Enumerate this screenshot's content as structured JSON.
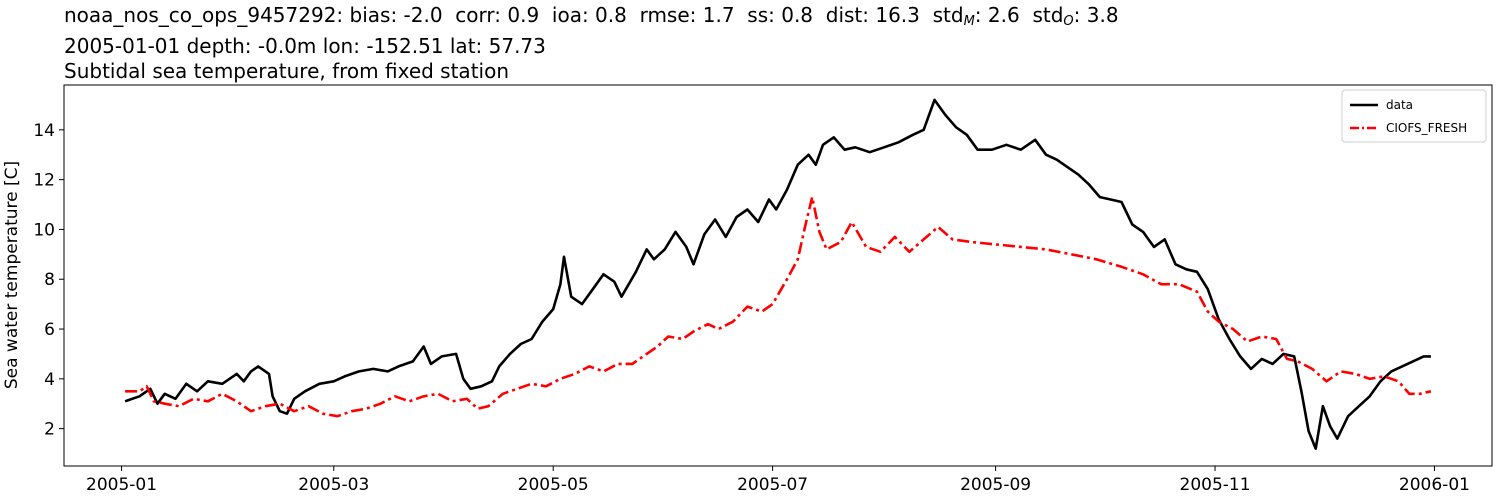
{
  "title": {
    "station": "noaa_nos_co_ops_9457292",
    "stats": [
      {
        "label": "bias",
        "value": "-2.0"
      },
      {
        "label": "corr",
        "value": "0.9"
      },
      {
        "label": "ioa",
        "value": "0.8"
      },
      {
        "label": "rmse",
        "value": "1.7"
      },
      {
        "label": "ss",
        "value": "0.8"
      },
      {
        "label": "dist",
        "value": "16.3"
      }
    ],
    "std_m_label": "std",
    "std_m_sub": "M",
    "std_m_value": "2.6",
    "std_o_label": "std",
    "std_o_sub": "O",
    "std_o_value": "3.8",
    "line2": "2005-01-01 depth: -0.0m lon: -152.51 lat: 57.73",
    "line3": "Subtidal sea temperature, from fixed station"
  },
  "chart_data": {
    "type": "line",
    "xlabel": "",
    "ylabel": "Sea water temperature [C]",
    "xlim": [
      "2004-12-16",
      "2006-01-17"
    ],
    "ylim": [
      0.5,
      15.8
    ],
    "x_ticks": [
      "2005-01",
      "2005-03",
      "2005-05",
      "2005-07",
      "2005-09",
      "2005-11",
      "2006-01"
    ],
    "y_ticks": [
      2,
      4,
      6,
      8,
      10,
      12,
      14
    ],
    "grid": false,
    "legend_position": "top-right",
    "series": [
      {
        "name": "data",
        "color": "#000000",
        "style": "solid",
        "points": [
          [
            "2005-01-02",
            3.1
          ],
          [
            "2005-01-06",
            3.3
          ],
          [
            "2005-01-09",
            3.6
          ],
          [
            "2005-01-11",
            3.0
          ],
          [
            "2005-01-13",
            3.4
          ],
          [
            "2005-01-16",
            3.2
          ],
          [
            "2005-01-19",
            3.8
          ],
          [
            "2005-01-22",
            3.5
          ],
          [
            "2005-01-25",
            3.9
          ],
          [
            "2005-01-29",
            3.8
          ],
          [
            "2005-02-02",
            4.2
          ],
          [
            "2005-02-04",
            3.9
          ],
          [
            "2005-02-06",
            4.3
          ],
          [
            "2005-02-08",
            4.5
          ],
          [
            "2005-02-11",
            4.2
          ],
          [
            "2005-02-12",
            3.3
          ],
          [
            "2005-02-14",
            2.7
          ],
          [
            "2005-02-16",
            2.6
          ],
          [
            "2005-02-18",
            3.2
          ],
          [
            "2005-02-21",
            3.5
          ],
          [
            "2005-02-25",
            3.8
          ],
          [
            "2005-03-01",
            3.9
          ],
          [
            "2005-03-04",
            4.1
          ],
          [
            "2005-03-08",
            4.3
          ],
          [
            "2005-03-12",
            4.4
          ],
          [
            "2005-03-16",
            4.3
          ],
          [
            "2005-03-19",
            4.5
          ],
          [
            "2005-03-23",
            4.7
          ],
          [
            "2005-03-26",
            5.3
          ],
          [
            "2005-03-28",
            4.6
          ],
          [
            "2005-03-31",
            4.9
          ],
          [
            "2005-04-04",
            5.0
          ],
          [
            "2005-04-06",
            4.0
          ],
          [
            "2005-04-08",
            3.6
          ],
          [
            "2005-04-11",
            3.7
          ],
          [
            "2005-04-14",
            3.9
          ],
          [
            "2005-04-16",
            4.5
          ],
          [
            "2005-04-19",
            5.0
          ],
          [
            "2005-04-22",
            5.4
          ],
          [
            "2005-04-25",
            5.6
          ],
          [
            "2005-04-28",
            6.3
          ],
          [
            "2005-05-01",
            6.8
          ],
          [
            "2005-05-03",
            7.8
          ],
          [
            "2005-05-04",
            8.9
          ],
          [
            "2005-05-06",
            7.3
          ],
          [
            "2005-05-09",
            7.0
          ],
          [
            "2005-05-12",
            7.6
          ],
          [
            "2005-05-15",
            8.2
          ],
          [
            "2005-05-18",
            7.9
          ],
          [
            "2005-05-20",
            7.3
          ],
          [
            "2005-05-24",
            8.3
          ],
          [
            "2005-05-27",
            9.2
          ],
          [
            "2005-05-29",
            8.8
          ],
          [
            "2005-06-01",
            9.2
          ],
          [
            "2005-06-04",
            9.9
          ],
          [
            "2005-06-07",
            9.3
          ],
          [
            "2005-06-09",
            8.6
          ],
          [
            "2005-06-12",
            9.8
          ],
          [
            "2005-06-15",
            10.4
          ],
          [
            "2005-06-18",
            9.7
          ],
          [
            "2005-06-21",
            10.5
          ],
          [
            "2005-06-24",
            10.8
          ],
          [
            "2005-06-27",
            10.3
          ],
          [
            "2005-06-30",
            11.2
          ],
          [
            "2005-07-02",
            10.8
          ],
          [
            "2005-07-05",
            11.6
          ],
          [
            "2005-07-08",
            12.6
          ],
          [
            "2005-07-11",
            13.0
          ],
          [
            "2005-07-13",
            12.6
          ],
          [
            "2005-07-15",
            13.4
          ],
          [
            "2005-07-18",
            13.7
          ],
          [
            "2005-07-21",
            13.2
          ],
          [
            "2005-07-24",
            13.3
          ],
          [
            "2005-07-28",
            13.1
          ],
          [
            "2005-08-01",
            13.3
          ],
          [
            "2005-08-05",
            13.5
          ],
          [
            "2005-08-09",
            13.8
          ],
          [
            "2005-08-12",
            14.0
          ],
          [
            "2005-08-15",
            15.2
          ],
          [
            "2005-08-18",
            14.6
          ],
          [
            "2005-08-21",
            14.1
          ],
          [
            "2005-08-24",
            13.8
          ],
          [
            "2005-08-27",
            13.2
          ],
          [
            "2005-08-31",
            13.2
          ],
          [
            "2005-09-04",
            13.4
          ],
          [
            "2005-09-08",
            13.2
          ],
          [
            "2005-09-12",
            13.6
          ],
          [
            "2005-09-15",
            13.0
          ],
          [
            "2005-09-18",
            12.8
          ],
          [
            "2005-09-21",
            12.5
          ],
          [
            "2005-09-24",
            12.2
          ],
          [
            "2005-09-27",
            11.8
          ],
          [
            "2005-09-30",
            11.3
          ],
          [
            "2005-10-03",
            11.2
          ],
          [
            "2005-10-06",
            11.1
          ],
          [
            "2005-10-09",
            10.2
          ],
          [
            "2005-10-12",
            9.9
          ],
          [
            "2005-10-15",
            9.3
          ],
          [
            "2005-10-18",
            9.6
          ],
          [
            "2005-10-21",
            8.6
          ],
          [
            "2005-10-24",
            8.4
          ],
          [
            "2005-10-27",
            8.3
          ],
          [
            "2005-10-30",
            7.6
          ],
          [
            "2005-11-02",
            6.4
          ],
          [
            "2005-11-05",
            5.6
          ],
          [
            "2005-11-08",
            4.9
          ],
          [
            "2005-11-11",
            4.4
          ],
          [
            "2005-11-14",
            4.8
          ],
          [
            "2005-11-17",
            4.6
          ],
          [
            "2005-11-20",
            5.0
          ],
          [
            "2005-11-23",
            4.9
          ],
          [
            "2005-11-25",
            3.5
          ],
          [
            "2005-11-27",
            1.9
          ],
          [
            "2005-11-29",
            1.2
          ],
          [
            "2005-12-01",
            2.9
          ],
          [
            "2005-12-03",
            2.1
          ],
          [
            "2005-12-05",
            1.6
          ],
          [
            "2005-12-08",
            2.5
          ],
          [
            "2005-12-11",
            2.9
          ],
          [
            "2005-12-14",
            3.3
          ],
          [
            "2005-12-17",
            3.9
          ],
          [
            "2005-12-20",
            4.3
          ],
          [
            "2005-12-23",
            4.5
          ],
          [
            "2005-12-26",
            4.7
          ],
          [
            "2005-12-29",
            4.9
          ],
          [
            "2005-12-31",
            4.9
          ]
        ]
      },
      {
        "name": "CIOFS_FRESH",
        "color": "#ff0000",
        "style": "dashdot",
        "points": [
          [
            "2005-01-02",
            3.5
          ],
          [
            "2005-01-06",
            3.5
          ],
          [
            "2005-01-08",
            3.7
          ],
          [
            "2005-01-10",
            3.1
          ],
          [
            "2005-01-13",
            3.0
          ],
          [
            "2005-01-17",
            2.9
          ],
          [
            "2005-01-21",
            3.2
          ],
          [
            "2005-01-25",
            3.1
          ],
          [
            "2005-01-29",
            3.4
          ],
          [
            "2005-02-02",
            3.1
          ],
          [
            "2005-02-06",
            2.7
          ],
          [
            "2005-02-10",
            2.9
          ],
          [
            "2005-02-14",
            3.0
          ],
          [
            "2005-02-18",
            2.7
          ],
          [
            "2005-02-22",
            2.9
          ],
          [
            "2005-02-26",
            2.6
          ],
          [
            "2005-03-02",
            2.5
          ],
          [
            "2005-03-06",
            2.7
          ],
          [
            "2005-03-10",
            2.8
          ],
          [
            "2005-03-14",
            3.0
          ],
          [
            "2005-03-18",
            3.3
          ],
          [
            "2005-03-22",
            3.1
          ],
          [
            "2005-03-26",
            3.3
          ],
          [
            "2005-03-30",
            3.4
          ],
          [
            "2005-04-03",
            3.1
          ],
          [
            "2005-04-07",
            3.2
          ],
          [
            "2005-04-10",
            2.8
          ],
          [
            "2005-04-13",
            2.9
          ],
          [
            "2005-04-17",
            3.4
          ],
          [
            "2005-04-21",
            3.6
          ],
          [
            "2005-04-25",
            3.8
          ],
          [
            "2005-04-29",
            3.7
          ],
          [
            "2005-05-03",
            4.0
          ],
          [
            "2005-05-07",
            4.2
          ],
          [
            "2005-05-11",
            4.5
          ],
          [
            "2005-05-15",
            4.3
          ],
          [
            "2005-05-19",
            4.6
          ],
          [
            "2005-05-23",
            4.6
          ],
          [
            "2005-05-27",
            5.0
          ],
          [
            "2005-05-30",
            5.3
          ],
          [
            "2005-06-02",
            5.7
          ],
          [
            "2005-06-06",
            5.6
          ],
          [
            "2005-06-09",
            5.9
          ],
          [
            "2005-06-13",
            6.2
          ],
          [
            "2005-06-16",
            6.0
          ],
          [
            "2005-06-20",
            6.3
          ],
          [
            "2005-06-24",
            6.9
          ],
          [
            "2005-06-28",
            6.7
          ],
          [
            "2005-07-01",
            7.0
          ],
          [
            "2005-07-05",
            8.0
          ],
          [
            "2005-07-08",
            8.8
          ],
          [
            "2005-07-10",
            10.1
          ],
          [
            "2005-07-12",
            11.3
          ],
          [
            "2005-07-14",
            9.9
          ],
          [
            "2005-07-16",
            9.2
          ],
          [
            "2005-07-20",
            9.5
          ],
          [
            "2005-07-23",
            10.3
          ],
          [
            "2005-07-27",
            9.3
          ],
          [
            "2005-07-31",
            9.1
          ],
          [
            "2005-08-04",
            9.7
          ],
          [
            "2005-08-08",
            9.1
          ],
          [
            "2005-08-12",
            9.6
          ],
          [
            "2005-08-16",
            10.1
          ],
          [
            "2005-08-20",
            9.6
          ],
          [
            "2005-08-25",
            9.5
          ],
          [
            "2005-09-01",
            9.4
          ],
          [
            "2005-09-08",
            9.3
          ],
          [
            "2005-09-15",
            9.2
          ],
          [
            "2005-09-22",
            9.0
          ],
          [
            "2005-09-29",
            8.8
          ],
          [
            "2005-10-06",
            8.5
          ],
          [
            "2005-10-12",
            8.2
          ],
          [
            "2005-10-17",
            7.8
          ],
          [
            "2005-10-22",
            7.8
          ],
          [
            "2005-10-27",
            7.5
          ],
          [
            "2005-10-30",
            6.7
          ],
          [
            "2005-11-02",
            6.3
          ],
          [
            "2005-11-06",
            6.0
          ],
          [
            "2005-11-10",
            5.5
          ],
          [
            "2005-11-14",
            5.7
          ],
          [
            "2005-11-18",
            5.6
          ],
          [
            "2005-11-21",
            4.8
          ],
          [
            "2005-11-24",
            4.7
          ],
          [
            "2005-11-28",
            4.4
          ],
          [
            "2005-12-02",
            3.9
          ],
          [
            "2005-12-06",
            4.3
          ],
          [
            "2005-12-10",
            4.2
          ],
          [
            "2005-12-14",
            4.0
          ],
          [
            "2005-12-18",
            4.1
          ],
          [
            "2005-12-22",
            3.9
          ],
          [
            "2005-12-25",
            3.4
          ],
          [
            "2005-12-28",
            3.4
          ],
          [
            "2005-12-31",
            3.5
          ]
        ]
      }
    ]
  }
}
